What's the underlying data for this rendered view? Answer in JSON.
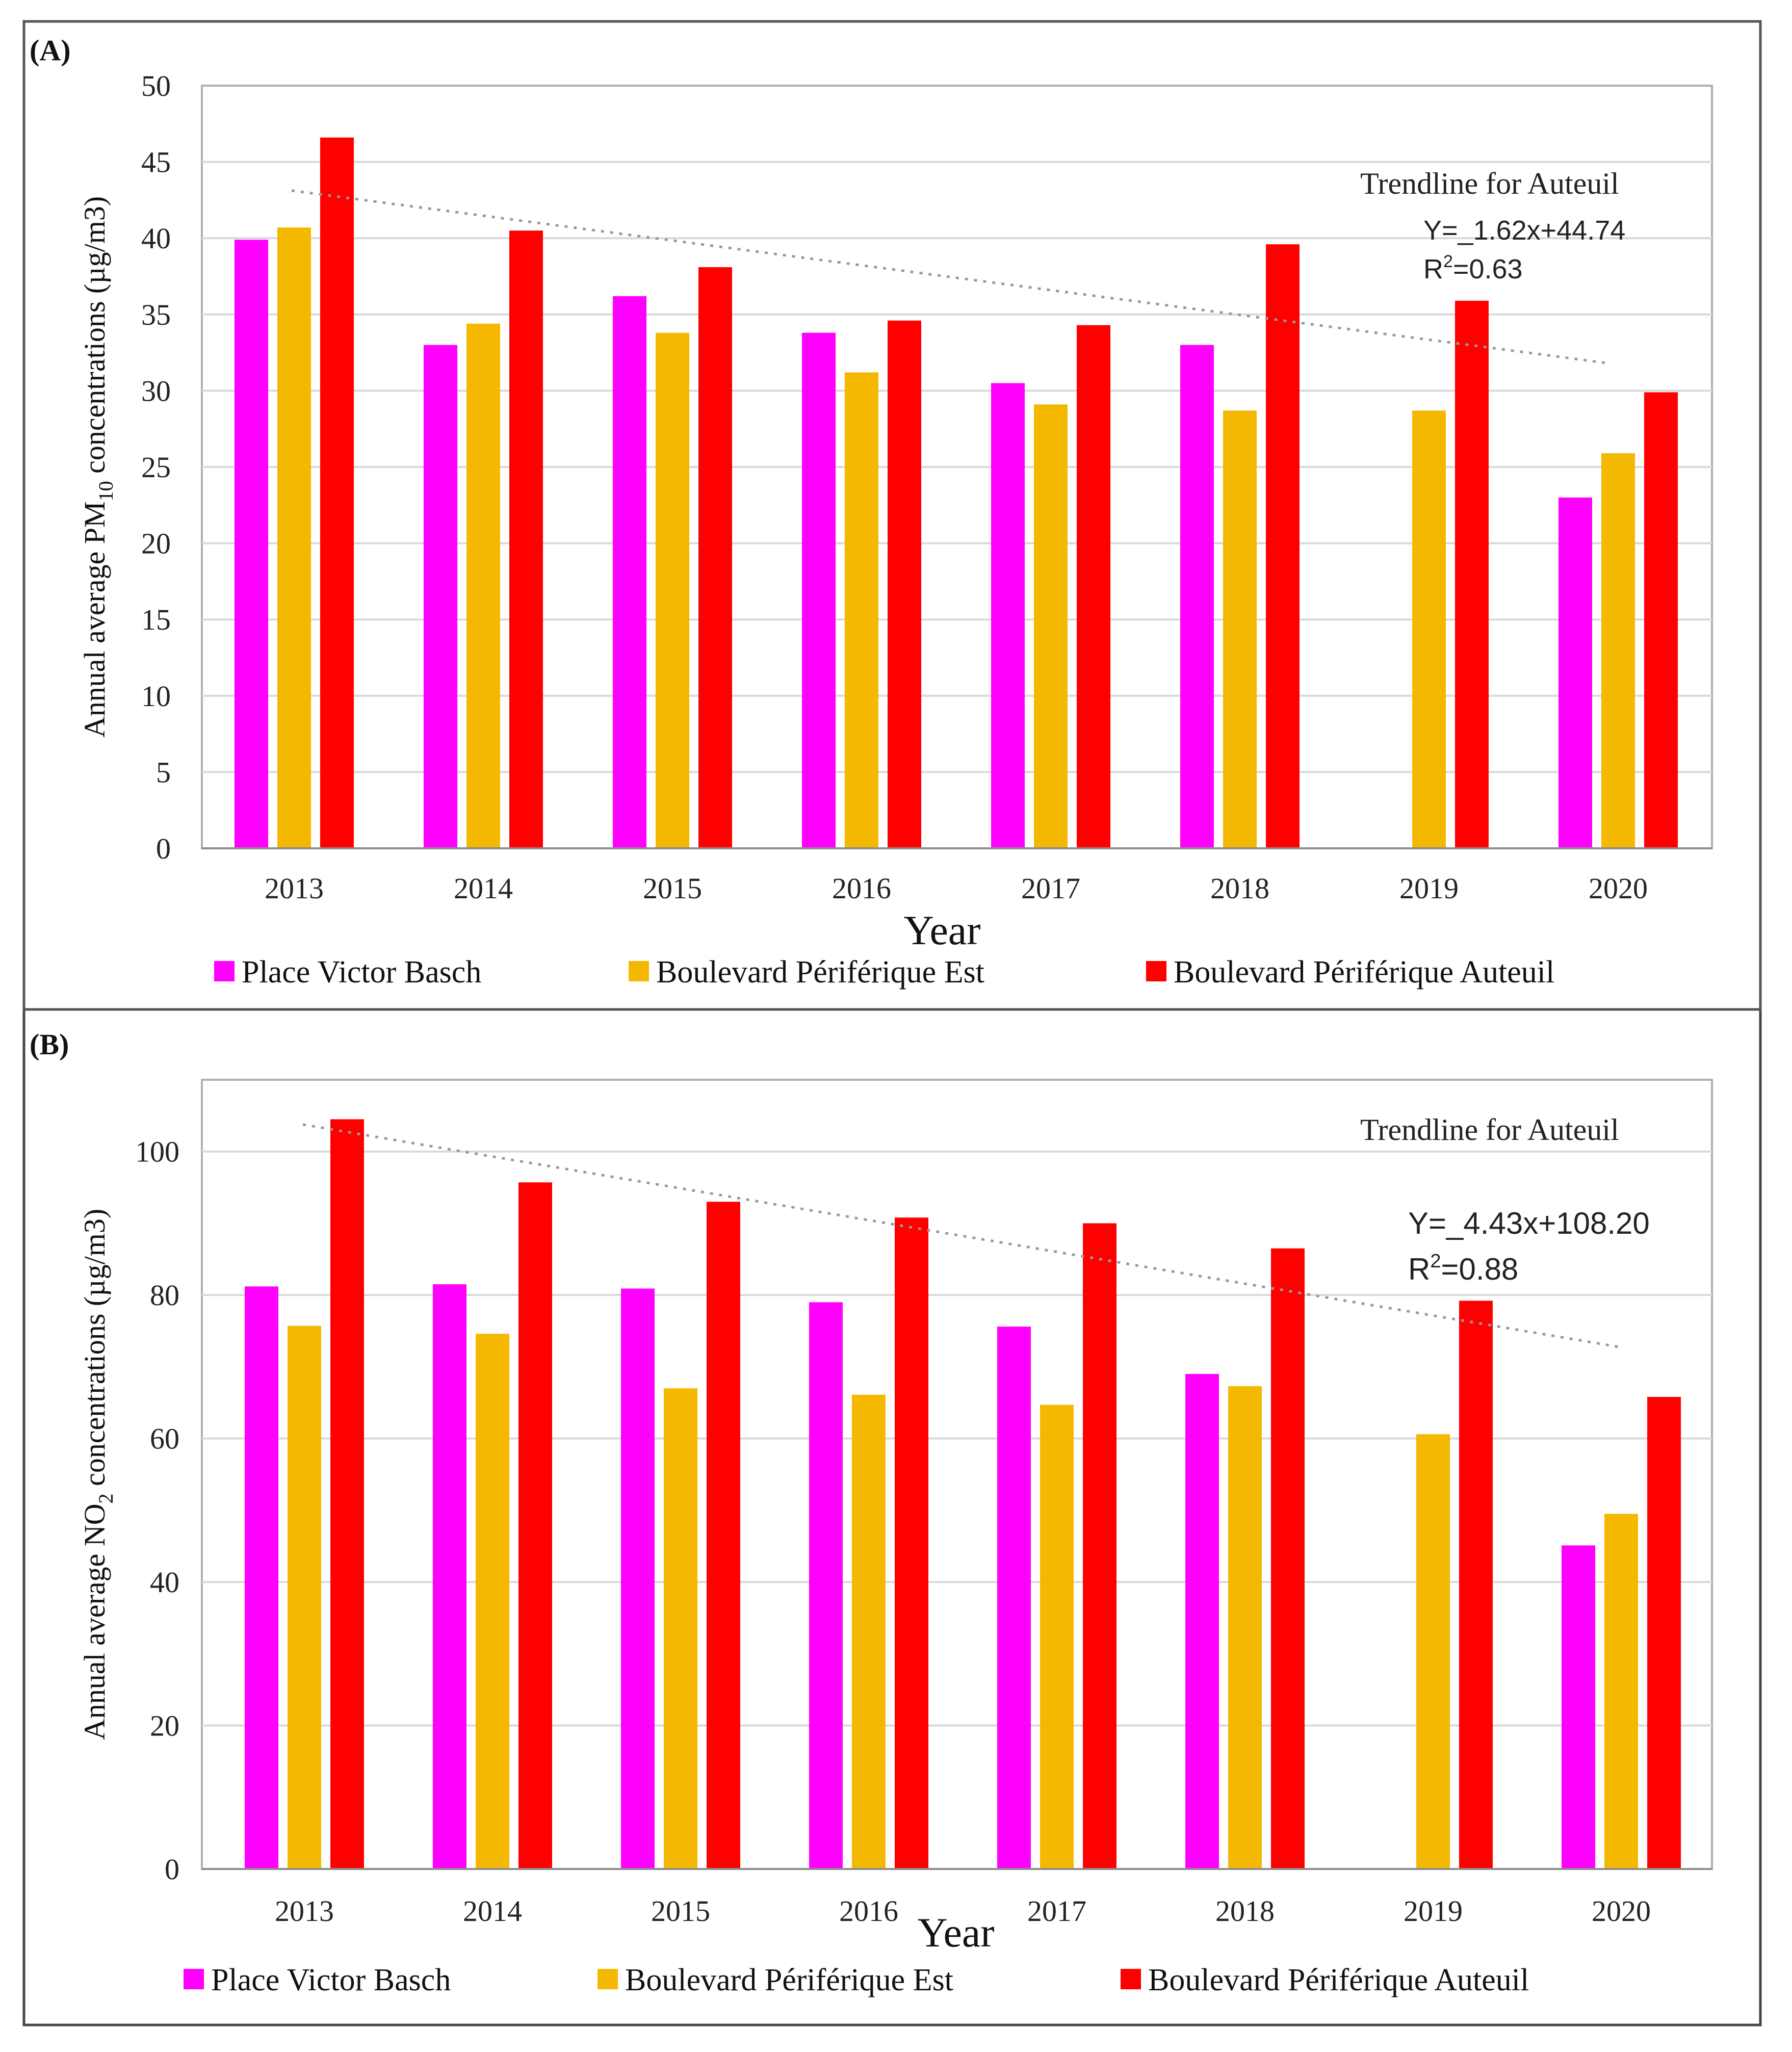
{
  "chart_data": [
    {
      "type": "bar",
      "panel_label": "(A)",
      "xlabel": "Year",
      "ylabel_pre": "Annual average PM",
      "ylabel_sub": "10",
      "ylabel_post": "  concentrations (µg/m3)",
      "ylim": [
        0,
        50
      ],
      "yticks": [
        0,
        5,
        10,
        15,
        20,
        25,
        30,
        35,
        40,
        45,
        50
      ],
      "categories": [
        "2013",
        "2014",
        "2015",
        "2016",
        "2017",
        "2018",
        "2019",
        "2020"
      ],
      "series": [
        {
          "name": "Place Victor Basch",
          "color": "#ff00ff",
          "values": [
            39.9,
            33.0,
            36.2,
            33.8,
            30.5,
            33.0,
            null,
            23.0
          ]
        },
        {
          "name": "Boulevard Périférique Est",
          "color": "#f5b800",
          "values": [
            40.7,
            34.4,
            33.8,
            31.2,
            29.1,
            28.7,
            28.7,
            25.9
          ]
        },
        {
          "name": "Boulevard Périférique Auteuil",
          "color": "#ff0000",
          "values": [
            46.6,
            40.5,
            38.1,
            34.6,
            34.3,
            39.6,
            35.9,
            29.9
          ]
        }
      ],
      "trendline": {
        "slope": -1.62,
        "intercept": 44.74
      },
      "annotation": {
        "title": "Trendline for Auteuil",
        "equation": "Y=_1.62x+44.74",
        "r2_pre": "R",
        "r2_sup": "2",
        "r2_post": "=0.63"
      },
      "legend_position": "bottom"
    },
    {
      "type": "bar",
      "panel_label": "(B)",
      "xlabel": "Year",
      "ylabel_pre": "Annual average NO",
      "ylabel_sub": "2",
      "ylabel_post": " concentrations  (µg/m3)",
      "ylim": [
        0,
        110
      ],
      "yticks": [
        0,
        20,
        40,
        60,
        80,
        100
      ],
      "categories": [
        "2013",
        "2014",
        "2015",
        "2016",
        "2017",
        "2018",
        "2019",
        "2020"
      ],
      "series": [
        {
          "name": "Place Victor Basch",
          "color": "#ff00ff",
          "values": [
            81.2,
            81.5,
            80.9,
            79.0,
            75.6,
            69.0,
            null,
            45.1
          ]
        },
        {
          "name": "Boulevard Périférique Est",
          "color": "#f5b800",
          "values": [
            75.7,
            74.6,
            67.0,
            66.1,
            64.7,
            67.3,
            60.6,
            49.5
          ]
        },
        {
          "name": "Boulevard Périférique Auteuil",
          "color": "#ff0000",
          "values": [
            104.5,
            95.7,
            93.0,
            90.8,
            90.0,
            86.5,
            79.2,
            65.8
          ]
        }
      ],
      "trendline": {
        "slope": -4.43,
        "intercept": 108.2
      },
      "annotation": {
        "title": "Trendline for Auteuil",
        "equation": "Y=_4.43x+108.20",
        "r2_pre": "R",
        "r2_sup": "2",
        "r2_post": "=0.88"
      },
      "legend_position": "bottom"
    }
  ]
}
